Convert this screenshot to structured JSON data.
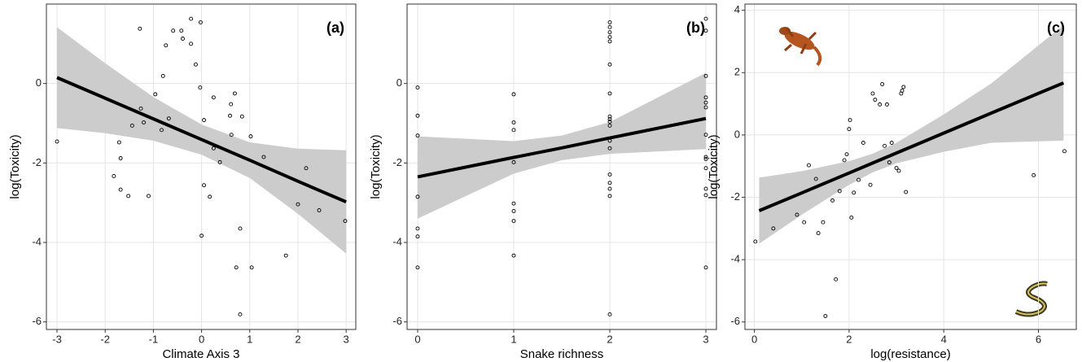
{
  "chart_data": [
    {
      "type": "scatter",
      "label": "(a)",
      "x_label": "Climate Axis 3",
      "y_label": "log(Toxicity)",
      "xlim": [
        -3.22,
        3.2
      ],
      "ylim": [
        -6.19,
        2.0
      ],
      "xticks": [
        -3,
        -2,
        -1,
        0,
        1,
        2,
        3
      ],
      "yticks": [
        -6,
        -4,
        -2,
        0
      ],
      "grid": true,
      "color": "#000000",
      "band_color": "#cccccc",
      "x": [
        -3.0,
        -1.28,
        -1.26,
        -1.2,
        -1.44,
        -1.82,
        -1.71,
        -1.68,
        -1.68,
        -1.52,
        -1.1,
        -0.96,
        -0.83,
        -0.8,
        -0.74,
        -0.68,
        -0.59,
        -0.42,
        -0.39,
        -0.22,
        -0.22,
        -0.12,
        -0.02,
        -0.03,
        0.0,
        0.05,
        0.05,
        0.17,
        0.25,
        0.25,
        0.38,
        0.59,
        0.61,
        0.62,
        0.69,
        0.72,
        0.84,
        0.8,
        0.8,
        1.02,
        1.04,
        1.29,
        1.75,
        2.0,
        2.17,
        2.44,
        2.98
      ],
      "values": [
        -1.46,
        1.38,
        -0.63,
        -0.98,
        -1.06,
        -2.33,
        -1.48,
        -1.88,
        -2.67,
        -2.83,
        -2.83,
        -0.27,
        -1.17,
        0.19,
        0.96,
        -0.88,
        1.33,
        1.33,
        1.13,
        1.63,
        1.0,
        0.48,
        1.54,
        -0.1,
        -3.83,
        -0.92,
        -2.56,
        -2.85,
        -0.35,
        -1.63,
        -1.98,
        -0.81,
        -0.52,
        -1.29,
        -0.25,
        -4.63,
        -0.83,
        -3.65,
        -5.81,
        -1.33,
        -4.63,
        -1.85,
        -4.33,
        -3.04,
        -2.13,
        -3.19,
        -3.46
      ],
      "fit": {
        "x": [
          -3,
          -2,
          -1,
          0,
          1,
          2,
          3
        ],
        "values": [
          0.15,
          -0.37,
          -0.89,
          -1.41,
          -1.93,
          -2.46,
          -2.98
        ],
        "lower": [
          -1.12,
          -1.25,
          -1.44,
          -1.79,
          -2.38,
          -3.28,
          -4.28
        ],
        "upper": [
          1.42,
          0.51,
          -0.34,
          -1.03,
          -1.48,
          -1.64,
          -1.68
        ]
      }
    },
    {
      "type": "scatter",
      "label": "(b)",
      "x_label": "Snake richness",
      "y_label": "log(Toxicity)",
      "xlim": [
        -0.11,
        3.11
      ],
      "ylim": [
        -6.19,
        2.0
      ],
      "xticks": [
        0,
        1,
        2,
        3
      ],
      "yticks": [
        -6,
        -4,
        -2,
        0
      ],
      "grid": true,
      "color": "#000000",
      "band_color": "#cccccc",
      "x": [
        0,
        0,
        0,
        0,
        0,
        0,
        0,
        1,
        1,
        1,
        1,
        1,
        1,
        1,
        1,
        2,
        2,
        2,
        2,
        2,
        2,
        2,
        2,
        2,
        2,
        2,
        2,
        2,
        2,
        2,
        2,
        2,
        2,
        3,
        3,
        3,
        3,
        3,
        3,
        3,
        3,
        3,
        3,
        3,
        3,
        3
      ],
      "values": [
        -0.1,
        -0.81,
        -1.31,
        -2.85,
        -3.65,
        -3.85,
        -4.63,
        -0.27,
        -0.98,
        -1.17,
        -1.98,
        -3.02,
        -3.21,
        -3.46,
        -4.33,
        1.54,
        1.42,
        1.29,
        1.17,
        1.06,
        0.48,
        -0.25,
        -0.83,
        -0.9,
        -0.96,
        -1.06,
        -1.44,
        -1.63,
        -2.29,
        -2.5,
        -2.65,
        -2.83,
        -5.81,
        1.63,
        1.33,
        0.19,
        -0.35,
        -0.48,
        -0.6,
        -1.29,
        -1.85,
        -1.9,
        -2.13,
        -2.65,
        -2.81,
        -4.63
      ],
      "fit": {
        "x": [
          0,
          1,
          1.5,
          2,
          3
        ],
        "values": [
          -2.35,
          -1.86,
          -1.62,
          -1.37,
          -0.88
        ],
        "lower": [
          -3.4,
          -2.27,
          -1.93,
          -1.77,
          -1.65
        ],
        "upper": [
          -1.33,
          -1.45,
          -1.31,
          -0.97,
          0.27
        ]
      }
    },
    {
      "type": "scatter",
      "label": "(c)",
      "x_label": "log(resistance)",
      "y_label": "log(Toxicity)",
      "xlim": [
        -0.2,
        6.8
      ],
      "ylim": [
        -6.24,
        4.2
      ],
      "xticks": [
        0,
        2,
        4,
        6
      ],
      "yticks": [
        -6,
        -4,
        -2,
        0,
        2,
        4
      ],
      "grid": true,
      "color": "#000000",
      "band_color": "#cccccc",
      "x": [
        0.02,
        0.4,
        0.9,
        1.05,
        1.15,
        1.3,
        1.35,
        1.45,
        1.5,
        1.65,
        1.72,
        1.8,
        1.9,
        1.95,
        2.0,
        2.02,
        2.05,
        2.1,
        2.2,
        2.3,
        2.45,
        2.5,
        2.55,
        2.65,
        2.7,
        2.75,
        2.8,
        2.85,
        2.9,
        3.0,
        3.05,
        3.1,
        3.12,
        3.15,
        3.2,
        5.9,
        6.55
      ],
      "values": [
        -3.42,
        -3.0,
        -2.56,
        -2.8,
        -0.97,
        -1.41,
        -3.15,
        -2.8,
        -5.81,
        -2.1,
        -4.63,
        -1.8,
        -0.81,
        -0.62,
        0.19,
        0.48,
        -2.65,
        -1.85,
        -1.44,
        -0.25,
        -1.6,
        1.33,
        1.13,
        0.98,
        1.63,
        -0.35,
        0.98,
        -0.88,
        -0.25,
        -1.06,
        -1.15,
        1.33,
        1.42,
        1.54,
        -1.83,
        -1.29,
        -0.52
      ],
      "fit": {
        "x": [
          0.1,
          1,
          2,
          2.5,
          3,
          4,
          5,
          6.53
        ],
        "values": [
          -2.43,
          -1.86,
          -1.22,
          -0.9,
          -0.58,
          0.06,
          0.7,
          1.67
        ],
        "lower": [
          -3.49,
          -2.56,
          -1.6,
          -1.2,
          -0.91,
          -0.54,
          -0.25,
          -0.18
        ],
        "upper": [
          -1.37,
          -1.16,
          -0.84,
          -0.6,
          -0.25,
          0.66,
          1.65,
          3.52
        ]
      }
    }
  ]
}
